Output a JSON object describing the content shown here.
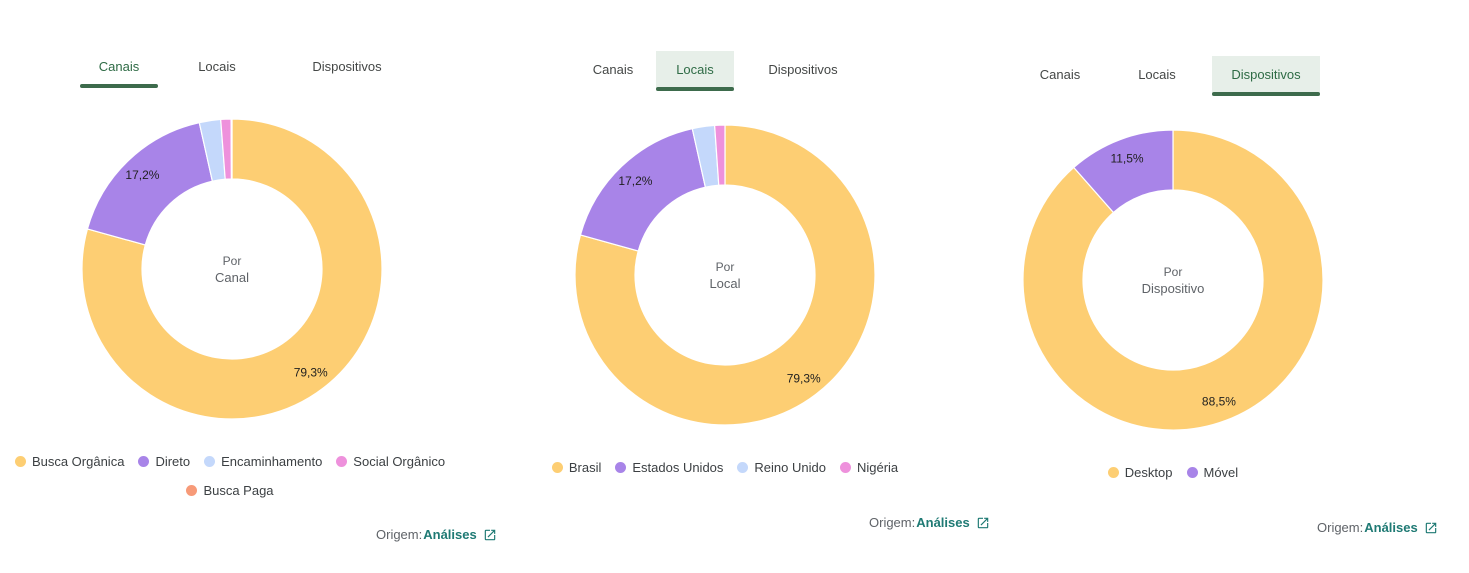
{
  "colors": {
    "accent": "#3d6b4c",
    "link": "#1f7a74",
    "yellow": "#fdce73",
    "purple": "#a884e8",
    "lightblue": "#c4d8fb",
    "pink": "#ee91dc",
    "salmon": "#f79a78"
  },
  "panels": [
    {
      "tabs": [
        {
          "label": "Canais"
        },
        {
          "label": "Locais"
        },
        {
          "label": "Dispositivos"
        }
      ],
      "active_tab": 0,
      "center": {
        "line1": "Por",
        "line2": "Canal"
      },
      "legend": [
        {
          "label": "Busca Orgânica",
          "color": "#fdce73"
        },
        {
          "label": "Direto",
          "color": "#a884e8"
        },
        {
          "label": "Encaminhamento",
          "color": "#c4d8fb"
        },
        {
          "label": "Social Orgânico",
          "color": "#ee91dc"
        },
        {
          "label": "Busca Paga",
          "color": "#f79a78"
        }
      ],
      "origin": {
        "label": "Origem:",
        "link": "Análises"
      }
    },
    {
      "tabs": [
        {
          "label": "Canais"
        },
        {
          "label": "Locais"
        },
        {
          "label": "Dispositivos"
        }
      ],
      "active_tab": 1,
      "center": {
        "line1": "Por",
        "line2": "Local"
      },
      "legend": [
        {
          "label": "Brasil",
          "color": "#fdce73"
        },
        {
          "label": "Estados Unidos",
          "color": "#a884e8"
        },
        {
          "label": "Reino Unido",
          "color": "#c4d8fb"
        },
        {
          "label": "Nigéria",
          "color": "#ee91dc"
        }
      ],
      "origin": {
        "label": "Origem:",
        "link": "Análises"
      }
    },
    {
      "tabs": [
        {
          "label": "Canais"
        },
        {
          "label": "Locais"
        },
        {
          "label": "Dispositivos"
        }
      ],
      "active_tab": 2,
      "center": {
        "line1": "Por",
        "line2": "Dispositivo"
      },
      "legend": [
        {
          "label": "Desktop",
          "color": "#fdce73"
        },
        {
          "label": "Móvel",
          "color": "#a884e8"
        }
      ],
      "origin": {
        "label": "Origem:",
        "link": "Análises"
      }
    }
  ],
  "chart_data": [
    {
      "type": "pie",
      "categories": [
        "Busca Orgânica",
        "Direto",
        "Encaminhamento",
        "Social Orgânico",
        "Busca Paga"
      ],
      "values": [
        79.3,
        17.2,
        2.3,
        1.1,
        0.1
      ],
      "data_labels": [
        "79,3%",
        "17,2%",
        "",
        "",
        ""
      ],
      "center_text": "Por Canal",
      "legend": "bottom"
    },
    {
      "type": "pie",
      "categories": [
        "Brasil",
        "Estados Unidos",
        "Reino Unido",
        "Nigéria"
      ],
      "values": [
        79.3,
        17.2,
        2.4,
        1.1
      ],
      "data_labels": [
        "79,3%",
        "17,2%",
        "",
        ""
      ],
      "center_text": "Por Local",
      "legend": "bottom"
    },
    {
      "type": "pie",
      "categories": [
        "Desktop",
        "Móvel"
      ],
      "values": [
        88.5,
        11.5
      ],
      "data_labels": [
        "88,5%",
        "11,5%"
      ],
      "center_text": "Por Dispositivo",
      "legend": "bottom"
    }
  ]
}
